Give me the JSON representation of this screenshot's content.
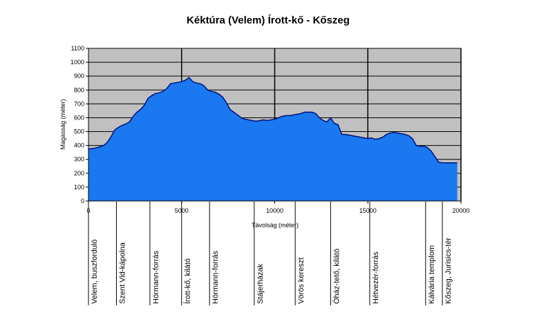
{
  "chart_data": {
    "type": "area",
    "title": "Kéktúra (Velem) Írott-kő - Kőszeg",
    "xlabel": "Távolság (méter)",
    "ylabel": "Magasság (méter)",
    "xlim": [
      0,
      20000
    ],
    "ylim": [
      0,
      1100
    ],
    "x_ticks": [
      0,
      5000,
      10000,
      15000,
      20000
    ],
    "y_ticks": [
      0,
      100,
      200,
      300,
      400,
      500,
      600,
      700,
      800,
      900,
      1000,
      1100
    ],
    "grid": true,
    "colors": {
      "fill": "#1a78f0",
      "line": "#00107a",
      "plot_bg": "#c0c0c0",
      "grid": "#000000"
    },
    "x": [
      0,
      300,
      600,
      800,
      1000,
      1200,
      1400,
      1600,
      1800,
      2000,
      2200,
      2400,
      2600,
      2800,
      3000,
      3200,
      3400,
      3600,
      3800,
      4000,
      4200,
      4400,
      4600,
      4800,
      5000,
      5200,
      5400,
      5500,
      5600,
      5800,
      6000,
      6200,
      6400,
      6600,
      6800,
      7000,
      7200,
      7400,
      7600,
      7800,
      8000,
      8200,
      8400,
      8600,
      8800,
      9000,
      9200,
      9400,
      9600,
      9800,
      10000,
      10200,
      10400,
      10600,
      10800,
      11000,
      11200,
      11400,
      11600,
      11800,
      12000,
      12200,
      12400,
      12600,
      12800,
      13000,
      13100,
      13200,
      13400,
      13600,
      13800,
      14000,
      14200,
      14400,
      14600,
      14800,
      15000,
      15200,
      15400,
      15600,
      15800,
      16000,
      16200,
      16400,
      16600,
      16800,
      17000,
      17200,
      17400,
      17600,
      17800,
      18000,
      18200,
      18400,
      18600,
      18800,
      19000,
      19200,
      19400,
      19600,
      19800
    ],
    "y": [
      375,
      380,
      390,
      400,
      420,
      460,
      510,
      530,
      545,
      555,
      570,
      610,
      640,
      660,
      690,
      740,
      760,
      775,
      780,
      790,
      810,
      845,
      850,
      855,
      860,
      870,
      890,
      875,
      860,
      850,
      845,
      830,
      800,
      790,
      785,
      770,
      750,
      710,
      660,
      640,
      620,
      600,
      590,
      585,
      580,
      575,
      580,
      585,
      580,
      585,
      590,
      600,
      610,
      615,
      615,
      620,
      625,
      630,
      640,
      640,
      640,
      630,
      600,
      580,
      570,
      600,
      580,
      560,
      550,
      480,
      480,
      475,
      470,
      465,
      460,
      455,
      450,
      455,
      445,
      450,
      460,
      480,
      490,
      495,
      490,
      485,
      480,
      470,
      450,
      400,
      395,
      395,
      385,
      360,
      320,
      280,
      275,
      275,
      275,
      275,
      275
    ],
    "waypoints": [
      {
        "x": 0,
        "label": "Velem, buszforduló"
      },
      {
        "x": 1500,
        "label": "Szent Vid-kápolna"
      },
      {
        "x": 3300,
        "label": "Hörmann-forrás"
      },
      {
        "x": 5000,
        "label": "Írott-kő, kilátó"
      },
      {
        "x": 6500,
        "label": "Hörmann-forrás"
      },
      {
        "x": 8900,
        "label": "Stájerházak"
      },
      {
        "x": 11100,
        "label": "Vörös kereszt"
      },
      {
        "x": 13000,
        "label": "Óház-tető, kilátó"
      },
      {
        "x": 15100,
        "label": "Hétvezér-forrás"
      },
      {
        "x": 18100,
        "label": "Kálvária templom"
      },
      {
        "x": 19000,
        "label": "Kőszeg, Jurisics-tér"
      }
    ]
  }
}
